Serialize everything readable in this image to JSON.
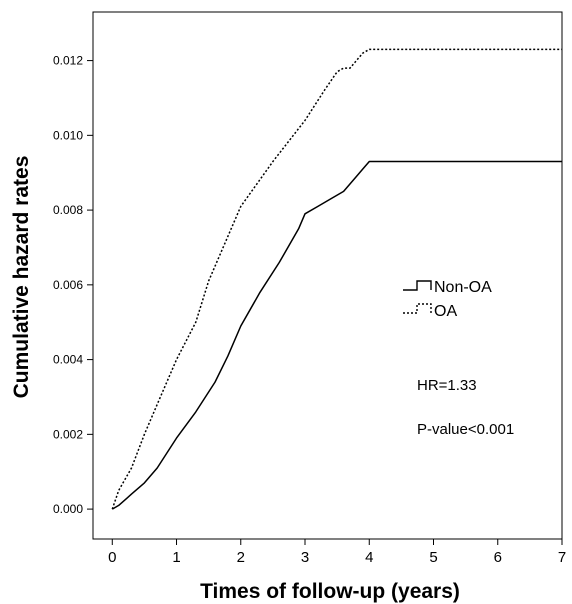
{
  "chart_data": {
    "type": "line",
    "title": "",
    "xlabel": "Times of follow-up (years)",
    "ylabel": "Cumulative hazard rates",
    "xlim": [
      -0.3,
      7
    ],
    "ylim": [
      -0.0008,
      0.0133
    ],
    "x_ticks": [
      0,
      1,
      2,
      3,
      4,
      5,
      6,
      7
    ],
    "y_ticks": [
      0.0,
      0.002,
      0.004,
      0.006,
      0.008,
      0.01,
      0.012
    ],
    "x_tick_labels": [
      "0",
      "1",
      "2",
      "3",
      "4",
      "5",
      "6",
      "7"
    ],
    "y_tick_labels": [
      "0.000",
      "0.002",
      "0.004",
      "0.006",
      "0.008",
      "0.010",
      "0.012"
    ],
    "grid": false,
    "legend_position": "right",
    "series": [
      {
        "name": "Non-OA",
        "line_style": "solid",
        "color": "#000000",
        "x": [
          0,
          0.1,
          0.3,
          0.5,
          0.7,
          1.0,
          1.3,
          1.6,
          1.8,
          2.0,
          2.3,
          2.6,
          2.9,
          3.0,
          3.2,
          3.4,
          3.6,
          3.8,
          3.9,
          4.0,
          7.0
        ],
        "y": [
          0,
          0.0001,
          0.0004,
          0.0007,
          0.0011,
          0.0019,
          0.0026,
          0.0034,
          0.0041,
          0.0049,
          0.0058,
          0.0066,
          0.0075,
          0.0079,
          0.0081,
          0.0083,
          0.0085,
          0.0089,
          0.0091,
          0.0093,
          0.0093
        ]
      },
      {
        "name": "OA",
        "line_style": "dotted",
        "color": "#000000",
        "x": [
          0,
          0.1,
          0.2,
          0.3,
          0.5,
          0.7,
          1.0,
          1.3,
          1.5,
          2.0,
          2.5,
          3.0,
          3.3,
          3.5,
          3.6,
          3.7,
          3.8,
          3.9,
          4.0,
          7.0
        ],
        "y": [
          0,
          0.0005,
          0.0008,
          0.0011,
          0.002,
          0.0028,
          0.004,
          0.005,
          0.0061,
          0.0081,
          0.0093,
          0.0104,
          0.0112,
          0.0117,
          0.0118,
          0.0118,
          0.012,
          0.0122,
          0.0123,
          0.0123
        ]
      }
    ],
    "annotations": [
      "HR=1.33",
      "P-value<0.001"
    ]
  }
}
